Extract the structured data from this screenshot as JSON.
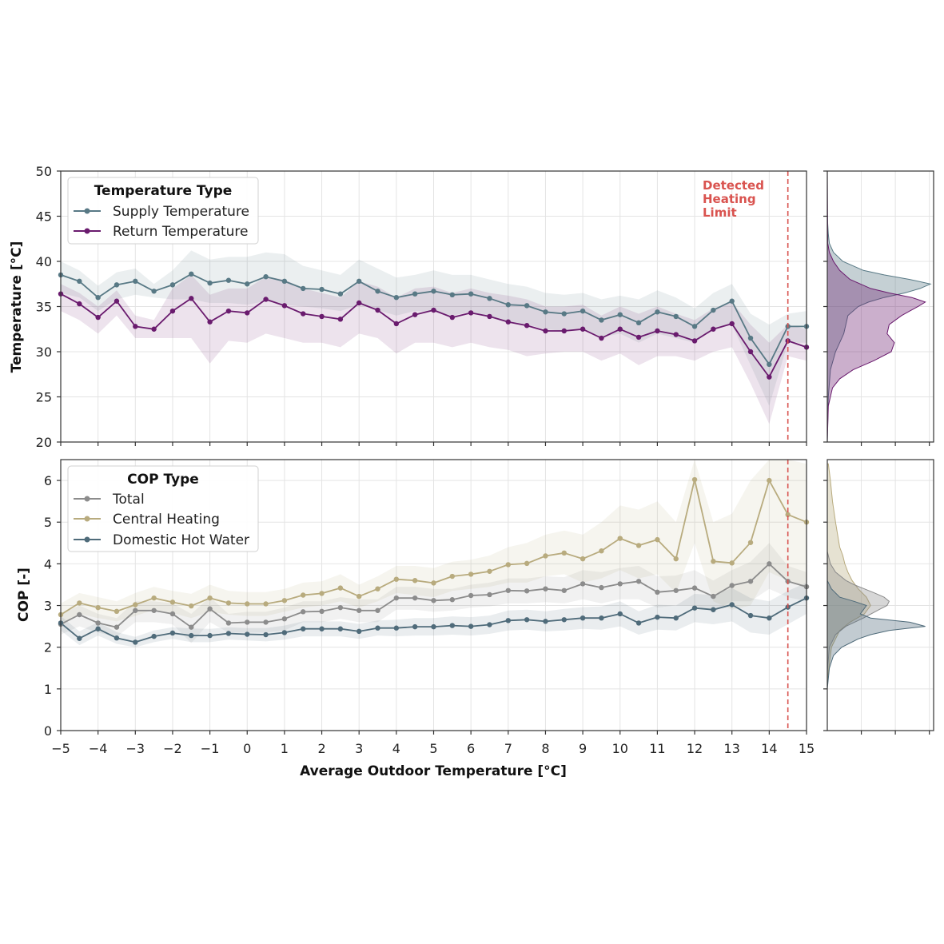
{
  "chart_data": [
    {
      "id": "top",
      "type": "line",
      "ylabel": "Temperature [°C]",
      "ylim": [
        20,
        50
      ],
      "yticks": [
        20,
        25,
        30,
        35,
        40,
        45,
        50
      ],
      "xlim": [
        -5,
        15
      ],
      "x": [
        -5,
        -4.5,
        -4,
        -3.5,
        -3,
        -2.5,
        -2,
        -1.5,
        -1,
        -0.5,
        0,
        0.5,
        1,
        1.5,
        2,
        2.5,
        3,
        3.5,
        4,
        4.5,
        5,
        5.5,
        6,
        6.5,
        7,
        7.5,
        8,
        8.5,
        9,
        9.5,
        10,
        10.5,
        11,
        11.5,
        12,
        12.5,
        13,
        13.5,
        14,
        14.5,
        15
      ],
      "legend_title": "Temperature Type",
      "legend_location": "top-left",
      "series": [
        {
          "name": "Supply Temperature",
          "color": "#587985",
          "values": [
            38.5,
            37.8,
            36.0,
            37.4,
            37.8,
            36.7,
            37.4,
            38.6,
            37.6,
            37.9,
            37.5,
            38.3,
            37.8,
            37.0,
            36.9,
            36.4,
            37.8,
            36.7,
            36.0,
            36.4,
            36.7,
            36.3,
            36.4,
            35.9,
            35.2,
            35.1,
            34.4,
            34.2,
            34.5,
            33.5,
            34.1,
            33.2,
            34.4,
            33.9,
            32.8,
            34.6,
            35.6,
            31.5,
            28.6,
            32.8,
            32.8
          ],
          "lower": [
            36.5,
            36.0,
            34.5,
            35.8,
            36.3,
            36.0,
            35.8,
            35.8,
            35.4,
            35.4,
            35.2,
            35.6,
            35.2,
            35.0,
            34.8,
            34.5,
            35.2,
            34.6,
            34.0,
            34.5,
            34.4,
            34.0,
            34.4,
            33.8,
            33.2,
            33.0,
            32.5,
            32.3,
            32.5,
            31.6,
            32.0,
            31.0,
            32.0,
            31.5,
            31.0,
            32.5,
            33.0,
            28.5,
            24.0,
            31.0,
            31.0
          ],
          "upper": [
            40.0,
            39.0,
            37.3,
            38.8,
            39.2,
            37.5,
            39.0,
            41.2,
            40.2,
            40.5,
            40.5,
            41.0,
            40.8,
            39.5,
            39.0,
            38.5,
            40.2,
            39.2,
            38.2,
            38.5,
            39.0,
            38.5,
            38.5,
            38.0,
            37.5,
            37.2,
            36.5,
            36.3,
            36.5,
            35.8,
            36.2,
            35.8,
            36.8,
            36.0,
            34.8,
            36.5,
            37.5,
            34.2,
            33.0,
            34.2,
            34.5
          ]
        },
        {
          "name": "Return Temperature",
          "color": "#6a1b6e",
          "values": [
            36.4,
            35.3,
            33.8,
            35.6,
            32.8,
            32.5,
            34.5,
            35.9,
            33.3,
            34.5,
            34.3,
            35.8,
            35.1,
            34.2,
            33.9,
            33.6,
            35.4,
            34.6,
            33.1,
            34.1,
            34.6,
            33.8,
            34.3,
            33.9,
            33.3,
            32.9,
            32.3,
            32.3,
            32.5,
            31.5,
            32.5,
            31.6,
            32.3,
            31.9,
            31.2,
            32.5,
            33.1,
            30.0,
            27.2,
            31.2,
            30.5
          ],
          "lower": [
            34.5,
            33.5,
            32.0,
            34.0,
            31.5,
            31.5,
            31.5,
            31.5,
            28.7,
            31.2,
            31.0,
            32.0,
            31.5,
            31.0,
            31.0,
            30.5,
            32.0,
            31.5,
            29.8,
            31.0,
            31.0,
            30.5,
            31.0,
            30.5,
            30.2,
            29.5,
            29.8,
            30.0,
            30.0,
            29.0,
            29.8,
            28.5,
            29.5,
            29.5,
            29.0,
            30.0,
            30.5,
            26.5,
            22.0,
            29.5,
            29.0
          ],
          "upper": [
            37.5,
            36.5,
            35.0,
            36.8,
            34.0,
            33.5,
            37.0,
            38.5,
            36.3,
            37.0,
            37.0,
            38.3,
            38.0,
            37.0,
            36.5,
            36.0,
            37.8,
            37.2,
            36.0,
            37.0,
            37.2,
            36.5,
            37.0,
            36.5,
            36.2,
            35.8,
            35.0,
            35.0,
            35.2,
            34.0,
            35.0,
            34.2,
            35.0,
            34.2,
            33.5,
            34.8,
            35.5,
            33.0,
            31.0,
            33.0,
            32.5
          ]
        }
      ],
      "annotation": {
        "text": [
          "Detected",
          "Heating",
          "Limit"
        ],
        "x": 14.5,
        "color": "#d9534f"
      }
    },
    {
      "id": "bottom",
      "type": "line",
      "ylabel": "COP [-]",
      "xlabel": "Average Outdoor Temperature [°C]",
      "ylim": [
        0,
        6.5
      ],
      "yticks": [
        0,
        1,
        2,
        3,
        4,
        5,
        6
      ],
      "xlim": [
        -5,
        15
      ],
      "xticks": [
        -5,
        -4,
        -3,
        -2,
        -1,
        0,
        1,
        2,
        3,
        4,
        5,
        6,
        7,
        8,
        9,
        10,
        11,
        12,
        13,
        14,
        15
      ],
      "xtick_labels": [
        "−5",
        "−4",
        "−3",
        "−2",
        "−1",
        "0",
        "1",
        "2",
        "3",
        "4",
        "5",
        "6",
        "7",
        "8",
        "9",
        "10",
        "11",
        "12",
        "13",
        "14",
        "15"
      ],
      "x": [
        -5,
        -4.5,
        -4,
        -3.5,
        -3,
        -2.5,
        -2,
        -1.5,
        -1,
        -0.5,
        0,
        0.5,
        1,
        1.5,
        2,
        2.5,
        3,
        3.5,
        4,
        4.5,
        5,
        5.5,
        6,
        6.5,
        7,
        7.5,
        8,
        8.5,
        9,
        9.5,
        10,
        10.5,
        11,
        11.5,
        12,
        12.5,
        13,
        13.5,
        14,
        14.5,
        15
      ],
      "legend_title": "COP Type",
      "legend_location": "top-left",
      "series": [
        {
          "name": "Total",
          "color": "#8c8c8c",
          "values": [
            2.55,
            2.78,
            2.58,
            2.48,
            2.88,
            2.88,
            2.8,
            2.48,
            2.92,
            2.58,
            2.6,
            2.6,
            2.68,
            2.85,
            2.86,
            2.95,
            2.88,
            2.88,
            3.18,
            3.18,
            3.12,
            3.14,
            3.24,
            3.26,
            3.36,
            3.35,
            3.4,
            3.36,
            3.52,
            3.43,
            3.52,
            3.58,
            3.32,
            3.36,
            3.42,
            3.22,
            3.48,
            3.58,
            4.0,
            3.58,
            3.45
          ],
          "lower": [
            2.3,
            2.5,
            2.35,
            2.25,
            2.6,
            2.6,
            2.55,
            2.1,
            2.6,
            2.35,
            2.35,
            2.35,
            2.4,
            2.6,
            2.6,
            2.68,
            2.6,
            2.6,
            2.9,
            2.9,
            2.85,
            2.88,
            2.95,
            2.98,
            3.05,
            3.05,
            3.08,
            3.05,
            3.15,
            3.05,
            3.15,
            3.15,
            2.95,
            3.0,
            3.0,
            2.85,
            3.1,
            3.1,
            3.4,
            3.2,
            3.1
          ],
          "upper": [
            2.8,
            3.0,
            2.8,
            2.7,
            3.1,
            3.1,
            3.05,
            2.8,
            3.2,
            2.8,
            2.85,
            2.85,
            2.95,
            3.1,
            3.1,
            3.2,
            3.15,
            3.15,
            3.45,
            3.45,
            3.4,
            3.4,
            3.5,
            3.55,
            3.65,
            3.65,
            3.7,
            3.68,
            3.85,
            3.8,
            3.9,
            3.95,
            3.7,
            3.72,
            3.85,
            3.6,
            3.85,
            4.05,
            4.5,
            3.95,
            3.8
          ]
        },
        {
          "name": "Central Heating",
          "color": "#b8ab7e",
          "values": [
            2.78,
            3.06,
            2.95,
            2.86,
            3.02,
            3.18,
            3.08,
            2.99,
            3.18,
            3.06,
            3.04,
            3.04,
            3.12,
            3.25,
            3.29,
            3.42,
            3.22,
            3.4,
            3.63,
            3.6,
            3.54,
            3.7,
            3.75,
            3.82,
            3.98,
            4.01,
            4.19,
            4.26,
            4.12,
            4.31,
            4.61,
            4.44,
            4.58,
            4.12,
            6.02,
            4.06,
            4.02,
            4.51,
            6.0,
            5.18,
            5.0
          ],
          "lower": [
            2.5,
            2.8,
            2.7,
            2.62,
            2.75,
            2.9,
            2.82,
            2.7,
            2.85,
            2.78,
            2.75,
            2.75,
            2.85,
            2.95,
            3.0,
            3.1,
            2.95,
            3.1,
            3.3,
            3.25,
            3.2,
            3.35,
            3.4,
            3.45,
            3.55,
            3.55,
            3.7,
            3.75,
            3.55,
            3.65,
            3.85,
            3.65,
            3.75,
            3.3,
            4.5,
            3.1,
            2.9,
            3.0,
            3.8,
            3.6,
            3.4
          ],
          "upper": [
            3.05,
            3.3,
            3.2,
            3.1,
            3.3,
            3.45,
            3.35,
            3.28,
            3.5,
            3.35,
            3.32,
            3.32,
            3.4,
            3.55,
            3.58,
            3.75,
            3.5,
            3.7,
            3.95,
            3.95,
            3.9,
            4.05,
            4.1,
            4.2,
            4.4,
            4.5,
            4.7,
            4.8,
            4.7,
            5.0,
            5.4,
            5.3,
            5.5,
            5.0,
            6.5,
            5.0,
            5.2,
            6.0,
            6.5,
            6.5,
            6.4
          ]
        },
        {
          "name": "Domestic Hot Water",
          "color": "#4f6b7a",
          "values": [
            2.58,
            2.21,
            2.44,
            2.22,
            2.12,
            2.26,
            2.34,
            2.28,
            2.28,
            2.33,
            2.31,
            2.3,
            2.35,
            2.44,
            2.44,
            2.44,
            2.38,
            2.46,
            2.46,
            2.49,
            2.49,
            2.52,
            2.5,
            2.54,
            2.64,
            2.66,
            2.62,
            2.66,
            2.7,
            2.7,
            2.8,
            2.58,
            2.72,
            2.7,
            2.94,
            2.9,
            3.02,
            2.76,
            2.7,
            2.96,
            3.18
          ],
          "lower": [
            2.4,
            2.05,
            2.28,
            2.08,
            2.0,
            2.12,
            2.2,
            2.12,
            2.12,
            2.18,
            2.16,
            2.14,
            2.18,
            2.26,
            2.26,
            2.26,
            2.2,
            2.28,
            2.26,
            2.28,
            2.28,
            2.3,
            2.28,
            2.32,
            2.4,
            2.42,
            2.38,
            2.4,
            2.44,
            2.42,
            2.5,
            2.3,
            2.42,
            2.4,
            2.6,
            2.55,
            2.62,
            2.35,
            2.3,
            2.55,
            2.8
          ],
          "upper": [
            2.75,
            2.38,
            2.6,
            2.36,
            2.25,
            2.4,
            2.48,
            2.45,
            2.44,
            2.48,
            2.46,
            2.46,
            2.52,
            2.62,
            2.62,
            2.62,
            2.56,
            2.64,
            2.66,
            2.7,
            2.7,
            2.74,
            2.72,
            2.76,
            2.88,
            2.9,
            2.86,
            2.92,
            2.96,
            2.98,
            3.1,
            2.86,
            3.02,
            3.0,
            3.28,
            3.25,
            3.42,
            3.18,
            3.1,
            3.35,
            3.55
          ]
        }
      ],
      "vline_x": 14.5
    },
    {
      "id": "marg_top",
      "type": "area",
      "orientation": "horizontal-density",
      "ylim": [
        20,
        50
      ],
      "series": [
        {
          "name": "Supply Temperature",
          "color": "#587985",
          "y": [
            20,
            25,
            28,
            30,
            31,
            32,
            33,
            34,
            35,
            35.5,
            36,
            36.5,
            37,
            37.5,
            38,
            38.5,
            39,
            40,
            41,
            42,
            43,
            45,
            50
          ],
          "density": [
            0,
            0.01,
            0.03,
            0.08,
            0.12,
            0.16,
            0.18,
            0.2,
            0.3,
            0.4,
            0.55,
            0.75,
            0.9,
            1.0,
            0.8,
            0.55,
            0.35,
            0.15,
            0.06,
            0.02,
            0.01,
            0,
            0
          ]
        },
        {
          "name": "Return Temperature",
          "color": "#6a1b6e",
          "y": [
            20,
            24,
            26,
            27,
            28,
            29,
            30,
            31,
            32,
            33,
            34,
            34.5,
            35,
            35.5,
            36,
            36.5,
            37,
            38,
            39,
            40,
            41,
            42,
            50
          ],
          "density": [
            0,
            0.01,
            0.05,
            0.12,
            0.25,
            0.45,
            0.62,
            0.65,
            0.58,
            0.6,
            0.72,
            0.8,
            0.88,
            0.95,
            0.82,
            0.6,
            0.42,
            0.22,
            0.12,
            0.06,
            0.02,
            0.005,
            0
          ]
        }
      ]
    },
    {
      "id": "marg_bottom",
      "type": "area",
      "orientation": "horizontal-density",
      "ylim": [
        0,
        6.5
      ],
      "series": [
        {
          "name": "Central Heating",
          "color": "#b8ab7e",
          "y": [
            1.2,
            2.0,
            2.4,
            2.6,
            2.8,
            3.0,
            3.2,
            3.4,
            3.6,
            3.8,
            4.0,
            4.2,
            4.4,
            4.7,
            5.0,
            5.5,
            6.0,
            6.4
          ],
          "density": [
            0,
            0.04,
            0.12,
            0.22,
            0.36,
            0.42,
            0.38,
            0.3,
            0.24,
            0.2,
            0.17,
            0.15,
            0.12,
            0.1,
            0.08,
            0.05,
            0.03,
            0.01
          ]
        },
        {
          "name": "Total",
          "color": "#8c8c8c",
          "y": [
            1.4,
            2.0,
            2.3,
            2.5,
            2.7,
            2.9,
            3.0,
            3.1,
            3.2,
            3.3,
            3.4,
            3.5,
            3.6,
            3.8,
            4.0,
            4.3
          ],
          "density": [
            0,
            0.02,
            0.08,
            0.18,
            0.35,
            0.5,
            0.58,
            0.6,
            0.55,
            0.46,
            0.36,
            0.26,
            0.18,
            0.08,
            0.03,
            0
          ]
        },
        {
          "name": "Domestic Hot Water",
          "color": "#4f6b7a",
          "y": [
            1.0,
            1.5,
            1.8,
            2.0,
            2.1,
            2.2,
            2.3,
            2.4,
            2.5,
            2.6,
            2.7,
            2.8,
            2.9,
            3.0,
            3.1,
            3.2,
            3.4,
            3.6
          ],
          "density": [
            0,
            0.02,
            0.06,
            0.14,
            0.22,
            0.3,
            0.42,
            0.6,
            0.95,
            0.8,
            0.42,
            0.32,
            0.35,
            0.38,
            0.26,
            0.12,
            0.04,
            0
          ]
        }
      ]
    }
  ]
}
